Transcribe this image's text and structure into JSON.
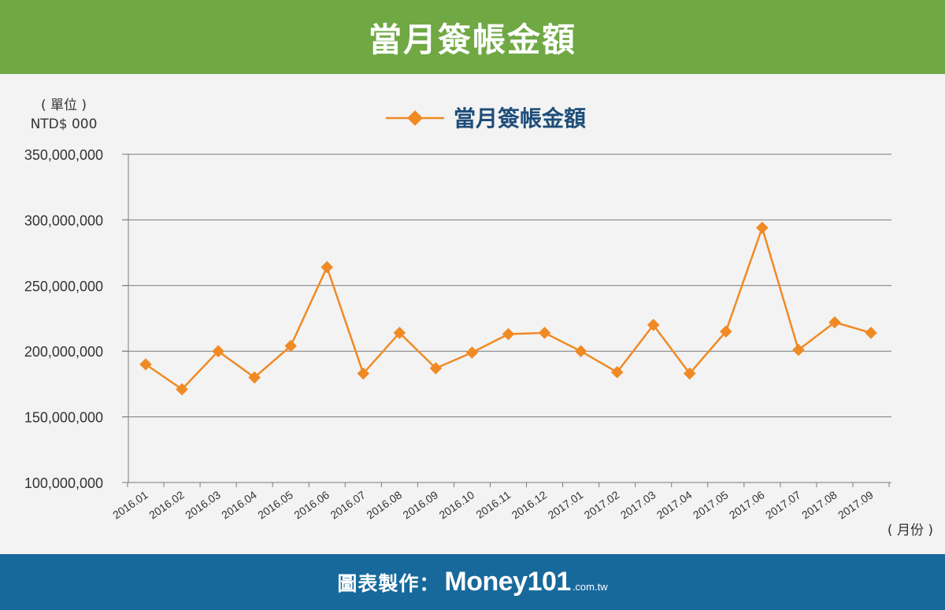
{
  "header": {
    "title": "當月簽帳金額"
  },
  "unit": {
    "line1": "( 單位 )",
    "line2": "NTD$ 000"
  },
  "footer": {
    "prefix": "圖表製作：",
    "brand": "Money101",
    "domain": ".com.tw"
  },
  "x_unit_label": "( 月份 )",
  "colors": {
    "header": "#70a844",
    "footer": "#17699c",
    "series": "#f08a24",
    "legend_text": "#1f4e79"
  },
  "chart_data": {
    "type": "line",
    "legend": "當月簽帳金額",
    "legend_placement": "top-center",
    "grid": true,
    "ylim": [
      100000000,
      350000000
    ],
    "yticks": [
      100000000,
      150000000,
      200000000,
      250000000,
      300000000,
      350000000
    ],
    "ytick_labels": [
      "100,000,000",
      "150,000,000",
      "200,000,000",
      "250,000,000",
      "300,000,000",
      "350,000,000"
    ],
    "categories": [
      "2016.01",
      "2016.02",
      "2016.03",
      "2016.04",
      "2016.05",
      "2016.06",
      "2016.07",
      "2016.08",
      "2016.09",
      "2016.10",
      "2016.11",
      "2016.12",
      "2017.01",
      "2017.02",
      "2017.03",
      "2017.04",
      "2017.05",
      "2017.06",
      "2017.07",
      "2017.08",
      "2017.09"
    ],
    "series": [
      {
        "name": "當月簽帳金額",
        "values": [
          190000000,
          171000000,
          200000000,
          180000000,
          204000000,
          264000000,
          183000000,
          214000000,
          187000000,
          199000000,
          213000000,
          214000000,
          200000000,
          184000000,
          220000000,
          183000000,
          215000000,
          294000000,
          201000000,
          222000000,
          214000000
        ]
      }
    ]
  }
}
